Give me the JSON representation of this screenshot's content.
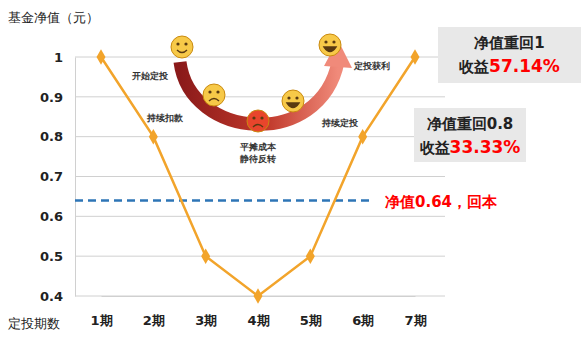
{
  "chart_data": {
    "type": "line",
    "y_label": "基金净值（元）",
    "x_label": "定投期数",
    "categories": [
      "1期",
      "2期",
      "3期",
      "4期",
      "5期",
      "6期",
      "7期"
    ],
    "values": [
      1,
      0.8,
      0.5,
      0.4,
      0.5,
      0.8,
      1
    ],
    "color": "#f2a42b",
    "marker": "diamond",
    "ylim": [
      0.4,
      1
    ],
    "yticks": [
      0.4,
      0.5,
      0.6,
      0.7,
      0.8,
      0.9,
      1
    ],
    "grid": true,
    "reference_line": {
      "value": 0.64,
      "color": "#2e75b6",
      "line_style": "dashed",
      "label": "净值0.64，回本",
      "label_color": "#ff0000"
    },
    "callouts": [
      {
        "title": "净值重回1",
        "prefix": "收益",
        "highlight": "57.14%"
      },
      {
        "title": "净值重回0.8",
        "prefix": "收益",
        "highlight": "33.33%"
      }
    ],
    "stage_labels": [
      [
        "开始定投"
      ],
      [
        "持续扣款"
      ],
      [
        "平摊成本",
        "静待反转"
      ],
      [
        "持续定投"
      ],
      [
        "定投获利"
      ]
    ]
  }
}
